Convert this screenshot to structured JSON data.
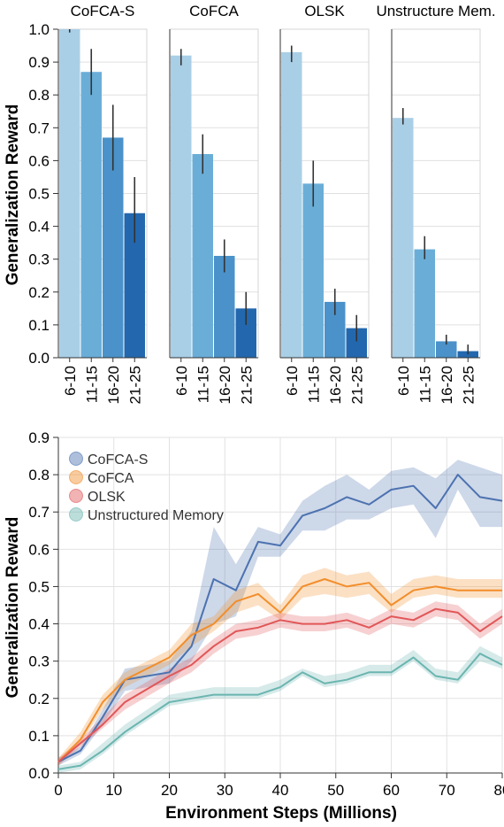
{
  "chart_data": [
    {
      "type": "bar",
      "ylabel": "Generalization Reward",
      "ylim": [
        0,
        1.0
      ],
      "yticks": [
        "0.0",
        "0.1",
        "0.2",
        "0.3",
        "0.4",
        "0.5",
        "0.6",
        "0.7",
        "0.8",
        "0.9",
        "1.0"
      ],
      "categories": [
        "6-10",
        "11-15",
        "16-20",
        "21-25"
      ],
      "bar_colors": [
        "#a9cfe6",
        "#6aaed8",
        "#4a92c9",
        "#2368ae"
      ],
      "grid": true,
      "panels": [
        {
          "name": "CoFCA-S",
          "values": [
            1.0,
            0.87,
            0.67,
            0.44
          ],
          "err_low": [
            0.99,
            0.8,
            0.57,
            0.35
          ],
          "err_high": [
            1.0,
            0.94,
            0.77,
            0.55
          ]
        },
        {
          "name": "CoFCA",
          "values": [
            0.92,
            0.62,
            0.31,
            0.15
          ],
          "err_low": [
            0.89,
            0.56,
            0.26,
            0.1
          ],
          "err_high": [
            0.94,
            0.68,
            0.36,
            0.2
          ]
        },
        {
          "name": "OLSK",
          "values": [
            0.93,
            0.53,
            0.17,
            0.09
          ],
          "err_low": [
            0.9,
            0.46,
            0.13,
            0.05
          ],
          "err_high": [
            0.95,
            0.6,
            0.21,
            0.13
          ]
        },
        {
          "name": "Unstructure Mem.",
          "values": [
            0.73,
            0.33,
            0.05,
            0.02
          ],
          "err_low": [
            0.71,
            0.3,
            0.04,
            0.01
          ],
          "err_high": [
            0.76,
            0.37,
            0.07,
            0.04
          ]
        }
      ]
    },
    {
      "type": "line",
      "xlabel": "Environment Steps (Millions)",
      "ylabel": "Generalization Reward",
      "xlim": [
        0,
        80
      ],
      "ylim": [
        0,
        0.9
      ],
      "xticks": [
        "0",
        "10",
        "20",
        "30",
        "40",
        "50",
        "60",
        "70",
        "80"
      ],
      "yticks": [
        "0.0",
        "0.1",
        "0.2",
        "0.3",
        "0.4",
        "0.5",
        "0.6",
        "0.7",
        "0.8",
        "0.9"
      ],
      "legend_position": "top-left",
      "grid": true,
      "x": [
        0,
        4,
        8,
        12,
        20,
        24,
        28,
        32,
        36,
        40,
        44,
        48,
        52,
        56,
        60,
        64,
        68,
        72,
        76,
        80
      ],
      "series": [
        {
          "name": "CoFCA-S",
          "color": "#4c72b0",
          "values": [
            0.03,
            0.06,
            0.15,
            0.25,
            0.27,
            0.34,
            0.52,
            0.49,
            0.62,
            0.61,
            0.69,
            0.71,
            0.74,
            0.72,
            0.76,
            0.77,
            0.71,
            0.8,
            0.74,
            0.73
          ],
          "low": [
            0.02,
            0.05,
            0.13,
            0.22,
            0.24,
            0.3,
            0.4,
            0.42,
            0.58,
            0.58,
            0.65,
            0.65,
            0.68,
            0.68,
            0.71,
            0.72,
            0.63,
            0.76,
            0.66,
            0.66
          ],
          "high": [
            0.04,
            0.07,
            0.17,
            0.28,
            0.3,
            0.38,
            0.66,
            0.56,
            0.66,
            0.64,
            0.73,
            0.77,
            0.8,
            0.76,
            0.81,
            0.82,
            0.79,
            0.84,
            0.82,
            0.8
          ]
        },
        {
          "name": "CoFCA",
          "color": "#f28e2b",
          "values": [
            0.03,
            0.09,
            0.19,
            0.25,
            0.31,
            0.37,
            0.4,
            0.46,
            0.48,
            0.43,
            0.5,
            0.52,
            0.5,
            0.51,
            0.45,
            0.49,
            0.5,
            0.49,
            0.49,
            0.49
          ],
          "low": [
            0.02,
            0.08,
            0.17,
            0.23,
            0.29,
            0.34,
            0.38,
            0.43,
            0.45,
            0.41,
            0.47,
            0.48,
            0.47,
            0.48,
            0.43,
            0.47,
            0.48,
            0.47,
            0.47,
            0.47
          ],
          "high": [
            0.04,
            0.11,
            0.21,
            0.27,
            0.33,
            0.4,
            0.42,
            0.49,
            0.51,
            0.45,
            0.53,
            0.55,
            0.53,
            0.54,
            0.48,
            0.52,
            0.53,
            0.52,
            0.52,
            0.52
          ]
        },
        {
          "name": "OLSK",
          "color": "#e15759",
          "values": [
            0.03,
            0.08,
            0.13,
            0.19,
            0.26,
            0.29,
            0.34,
            0.38,
            0.39,
            0.41,
            0.4,
            0.4,
            0.41,
            0.39,
            0.42,
            0.41,
            0.44,
            0.43,
            0.38,
            0.42
          ],
          "low": [
            0.02,
            0.07,
            0.12,
            0.17,
            0.24,
            0.27,
            0.32,
            0.36,
            0.37,
            0.39,
            0.38,
            0.38,
            0.39,
            0.37,
            0.4,
            0.39,
            0.42,
            0.41,
            0.36,
            0.4
          ],
          "high": [
            0.04,
            0.09,
            0.15,
            0.21,
            0.28,
            0.31,
            0.36,
            0.4,
            0.41,
            0.43,
            0.42,
            0.42,
            0.43,
            0.41,
            0.44,
            0.43,
            0.46,
            0.45,
            0.4,
            0.44
          ],
          "_note": "OLSK band"
        },
        {
          "name": "Unstructured Memory",
          "color": "#6ab5b0",
          "values": [
            0.01,
            0.02,
            0.06,
            0.11,
            0.19,
            0.2,
            0.21,
            0.21,
            0.21,
            0.23,
            0.27,
            0.24,
            0.25,
            0.27,
            0.27,
            0.31,
            0.26,
            0.25,
            0.32,
            0.29
          ],
          "low": [
            0.0,
            0.01,
            0.05,
            0.1,
            0.18,
            0.19,
            0.2,
            0.2,
            0.2,
            0.22,
            0.26,
            0.23,
            0.24,
            0.26,
            0.26,
            0.3,
            0.25,
            0.24,
            0.3,
            0.28
          ],
          "high": [
            0.02,
            0.03,
            0.08,
            0.13,
            0.21,
            0.22,
            0.23,
            0.23,
            0.23,
            0.25,
            0.28,
            0.26,
            0.27,
            0.29,
            0.29,
            0.33,
            0.28,
            0.27,
            0.34,
            0.31
          ]
        }
      ]
    }
  ]
}
